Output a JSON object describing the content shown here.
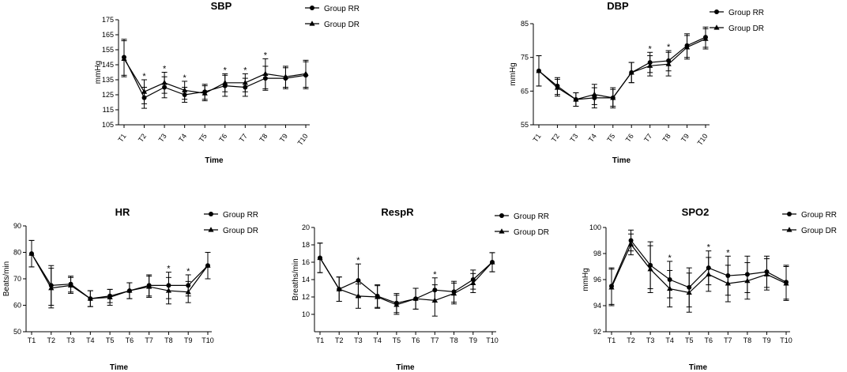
{
  "chart_data": [
    {
      "type": "line",
      "title": "SBP",
      "xlabel": "Time",
      "ylabel": "mmHg",
      "ylim": [
        105,
        175
      ],
      "yticks": [
        105,
        115,
        125,
        135,
        145,
        155,
        165,
        175
      ],
      "categories": [
        "T1",
        "T2",
        "T3",
        "T4",
        "T5",
        "T6",
        "T7",
        "T8",
        "T9",
        "T10"
      ],
      "legend": "top-right",
      "series": [
        {
          "name": "Group RR",
          "marker": "circle",
          "values": [
            150,
            123,
            130,
            125,
            127,
            131,
            130,
            136,
            136,
            138
          ],
          "errors": [
            12,
            7,
            7,
            5,
            5,
            7,
            6,
            8,
            7,
            9
          ]
        },
        {
          "name": "Group DR",
          "marker": "triangle",
          "values": [
            149,
            127,
            133,
            128,
            126,
            133,
            133,
            139,
            137,
            139
          ],
          "errors": [
            12,
            8,
            7,
            6,
            5,
            6,
            6,
            10,
            7,
            9
          ]
        }
      ],
      "significant": [
        "T2",
        "T3",
        "T4",
        "T6",
        "T7",
        "T8"
      ],
      "annotation": "*"
    },
    {
      "type": "line",
      "title": "DBP",
      "xlabel": "Time",
      "ylabel": "mmHg",
      "ylim": [
        55,
        85
      ],
      "yticks": [
        55,
        65,
        75,
        85
      ],
      "categories": [
        "T1",
        "T2",
        "T3",
        "T4",
        "T5",
        "T6",
        "T7",
        "T8",
        "T9",
        "T10"
      ],
      "legend": "top-right",
      "series": [
        {
          "name": "Group RR",
          "marker": "circle",
          "values": [
            71,
            66.5,
            62.5,
            63,
            63,
            70.5,
            73.5,
            74,
            78.5,
            81
          ],
          "errors": [
            4.5,
            2.5,
            2,
            3,
            2.5,
            3,
            3,
            3,
            3.5,
            3
          ]
        },
        {
          "name": "Group DR",
          "marker": "triangle",
          "values": [
            71,
            66,
            62.5,
            64,
            63,
            70.5,
            72.5,
            73,
            78,
            80.5
          ],
          "errors": [
            4.5,
            2.5,
            2,
            3,
            3,
            3,
            3,
            3.5,
            3.5,
            3
          ]
        }
      ],
      "significant": [
        "T7",
        "T8"
      ],
      "annotation": "*"
    },
    {
      "type": "line",
      "title": "HR",
      "xlabel": "Time",
      "ylabel": "Beats/min",
      "ylim": [
        50,
        90
      ],
      "yticks": [
        50,
        60,
        70,
        80,
        90
      ],
      "categories": [
        "T1",
        "T2",
        "T3",
        "T4",
        "T5",
        "T6",
        "T7",
        "T8",
        "T9",
        "T10"
      ],
      "legend": "top-right",
      "series": [
        {
          "name": "Group RR",
          "marker": "circle",
          "values": [
            79.5,
            67.5,
            68,
            62.5,
            63.5,
            65.5,
            67.5,
            67.5,
            67.5,
            75
          ],
          "errors": [
            5,
            7.5,
            3,
            3,
            2.5,
            3,
            4,
            5,
            4,
            5
          ]
        },
        {
          "name": "Group DR",
          "marker": "triangle",
          "values": [
            79.5,
            66.5,
            67.5,
            62.5,
            63,
            65.5,
            67,
            65.5,
            65,
            75
          ],
          "errors": [
            5,
            7.5,
            3,
            3,
            3,
            3,
            4,
            5,
            4,
            5
          ]
        }
      ],
      "significant": [
        "T8",
        "T9"
      ],
      "annotation": "*"
    },
    {
      "type": "line",
      "title": "RespR",
      "xlabel": "Time",
      "ylabel": "Breaths/min",
      "ylim": [
        8,
        20
      ],
      "yticks": [
        10,
        12,
        14,
        16,
        18,
        20
      ],
      "categories": [
        "T1",
        "T2",
        "T3",
        "T4",
        "T5",
        "T6",
        "T7",
        "T8",
        "T9",
        "T10"
      ],
      "legend": "top-right",
      "series": [
        {
          "name": "Group RR",
          "marker": "circle",
          "values": [
            16.5,
            12.9,
            13.9,
            12.1,
            11.3,
            11.8,
            12.8,
            12.6,
            14,
            16
          ],
          "errors": [
            1.7,
            1.4,
            1.9,
            1.3,
            1.1,
            1.2,
            1.4,
            1.2,
            1.1,
            1.1
          ]
        },
        {
          "name": "Group DR",
          "marker": "triangle",
          "values": [
            16.5,
            12.9,
            12.1,
            12,
            11.1,
            11.8,
            11.6,
            12.4,
            13.6,
            16
          ],
          "errors": [
            1.7,
            1.4,
            1.4,
            1.3,
            1.1,
            1.2,
            1.8,
            1.2,
            1.1,
            1.1
          ]
        }
      ],
      "significant": [
        "T3",
        "T7"
      ],
      "annotation": "*"
    },
    {
      "type": "line",
      "title": "SPO2",
      "xlabel": "Time",
      "ylabel": "mmHg",
      "ylim": [
        92,
        100
      ],
      "yticks": [
        92,
        94,
        96,
        98,
        100
      ],
      "categories": [
        "T1",
        "T2",
        "T3",
        "T4",
        "T5",
        "T6",
        "T7",
        "T8",
        "T9",
        "T10"
      ],
      "legend": "top-right",
      "series": [
        {
          "name": "Group RR",
          "marker": "circle",
          "values": [
            95.5,
            99,
            97.1,
            96,
            95.4,
            96.9,
            96.3,
            96.4,
            96.6,
            95.8
          ],
          "errors": [
            1.4,
            0.8,
            1.8,
            1.4,
            1.5,
            1.3,
            1.5,
            1.4,
            1.2,
            1.3
          ]
        },
        {
          "name": "Group DR",
          "marker": "triangle",
          "values": [
            95.4,
            98.7,
            96.8,
            95.3,
            95,
            96.4,
            95.7,
            95.9,
            96.4,
            95.7
          ],
          "errors": [
            1.4,
            0.8,
            1.8,
            1.4,
            1.5,
            1.3,
            1.4,
            1.4,
            1.2,
            1.3
          ]
        }
      ],
      "significant": [
        "T4",
        "T6",
        "T7"
      ],
      "annotation": "*"
    }
  ]
}
